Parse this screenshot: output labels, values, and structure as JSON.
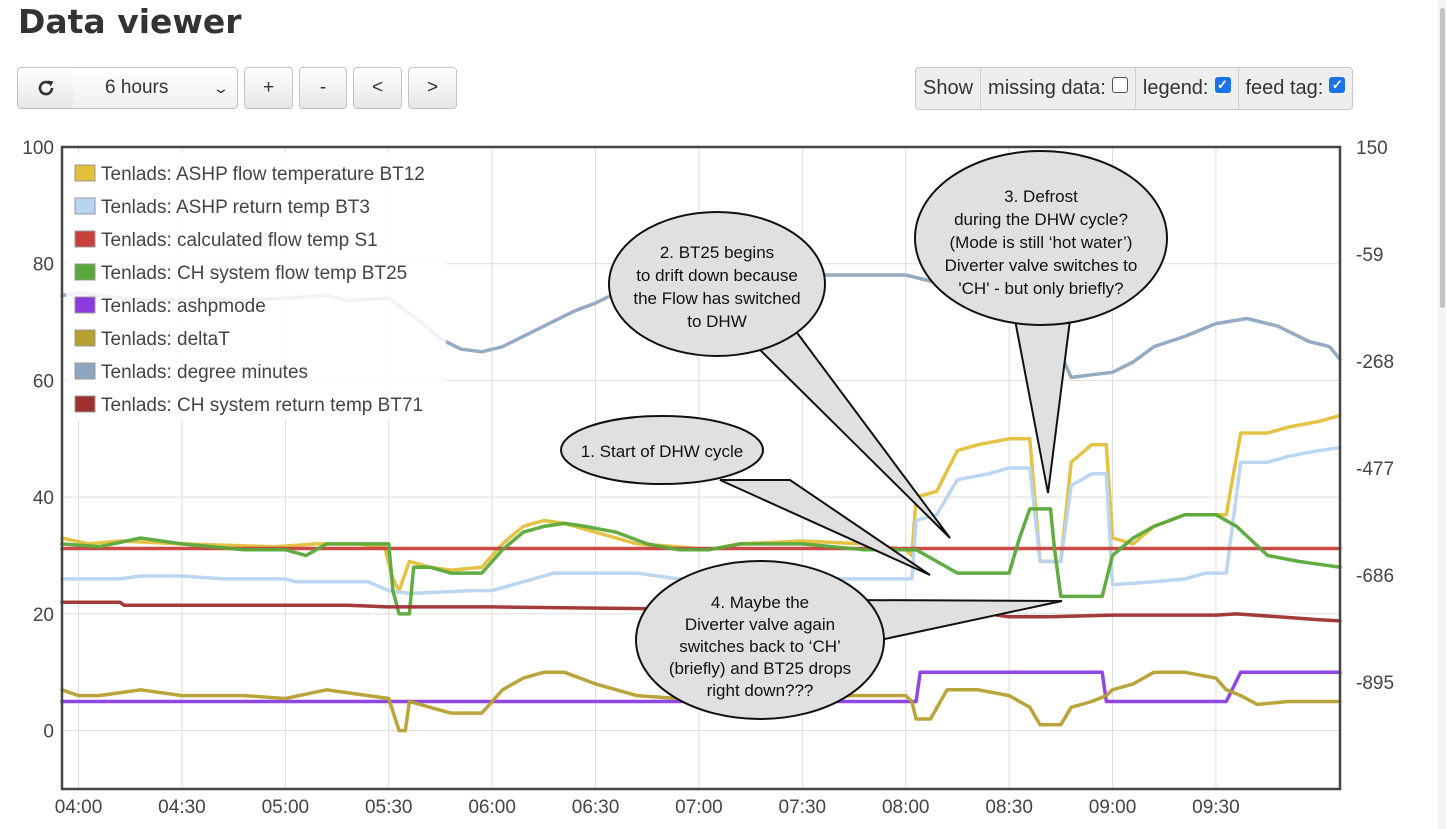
{
  "page": {
    "title": "Data viewer"
  },
  "toolbar": {
    "refresh_icon": "refresh-icon",
    "range_value": "6 hours",
    "zoom_in_label": "+",
    "zoom_out_label": "-",
    "pan_left_label": "<",
    "pan_right_label": ">"
  },
  "options": {
    "show_label": "Show",
    "missing_data_label": "missing data:",
    "missing_data_checked": false,
    "legend_label": "legend:",
    "legend_checked": true,
    "feed_tag_label": "feed tag:",
    "feed_tag_checked": true
  },
  "chart_data": {
    "type": "line",
    "x_ticks": [
      "04:00",
      "04:30",
      "05:00",
      "05:30",
      "06:00",
      "06:30",
      "07:00",
      "07:30",
      "08:00",
      "08:30",
      "09:00",
      "09:30"
    ],
    "y_left": {
      "ticks": [
        100,
        80,
        60,
        40,
        20,
        0
      ],
      "ylim": [
        -10,
        100
      ]
    },
    "y_right": {
      "ticks": [
        150,
        -59,
        -268,
        -477,
        -686,
        -895
      ],
      "ylim": [
        -1104,
        150
      ]
    },
    "grid": true,
    "legend_position": "top-left",
    "series": [
      {
        "name": "Tenlads: ASHP flow temperature BT12",
        "color": "#e3c03a",
        "axis": "left",
        "points": [
          [
            3.92,
            33
          ],
          [
            4.05,
            32
          ],
          [
            4.2,
            32.5
          ],
          [
            4.5,
            32
          ],
          [
            4.95,
            31.5
          ],
          [
            5.15,
            32
          ],
          [
            5.35,
            32
          ],
          [
            5.48,
            31.5
          ],
          [
            5.52,
            26
          ],
          [
            5.55,
            24
          ],
          [
            5.6,
            29
          ],
          [
            5.7,
            28
          ],
          [
            5.8,
            27.5
          ],
          [
            5.95,
            28
          ],
          [
            6.05,
            32
          ],
          [
            6.15,
            35
          ],
          [
            6.25,
            36
          ],
          [
            6.35,
            35.5
          ],
          [
            6.5,
            34
          ],
          [
            6.7,
            32
          ],
          [
            6.9,
            31.5
          ],
          [
            7.05,
            31
          ],
          [
            7.2,
            32
          ],
          [
            7.5,
            32.5
          ],
          [
            7.8,
            32
          ],
          [
            8.0,
            31
          ],
          [
            8.03,
            30
          ],
          [
            8.05,
            40
          ],
          [
            8.15,
            41
          ],
          [
            8.25,
            48
          ],
          [
            8.35,
            49
          ],
          [
            8.5,
            50
          ],
          [
            8.6,
            50
          ],
          [
            8.65,
            29
          ],
          [
            8.75,
            29
          ],
          [
            8.8,
            46
          ],
          [
            8.9,
            49
          ],
          [
            8.97,
            49
          ],
          [
            9.0,
            33
          ],
          [
            9.1,
            32
          ],
          [
            9.2,
            35
          ],
          [
            9.35,
            37
          ],
          [
            9.5,
            37
          ],
          [
            9.55,
            37
          ],
          [
            9.62,
            51
          ],
          [
            9.75,
            51
          ],
          [
            9.85,
            52
          ],
          [
            10.0,
            53
          ],
          [
            10.1,
            54
          ]
        ]
      },
      {
        "name": "Tenlads: ASHP return temp BT3",
        "color": "#b8d4f0",
        "axis": "left",
        "points": [
          [
            3.92,
            26
          ],
          [
            4.2,
            26
          ],
          [
            4.3,
            26.5
          ],
          [
            4.5,
            26.5
          ],
          [
            4.7,
            26
          ],
          [
            5.0,
            26
          ],
          [
            5.05,
            25.5
          ],
          [
            5.4,
            25.5
          ],
          [
            5.5,
            24
          ],
          [
            5.6,
            23.5
          ],
          [
            5.9,
            24
          ],
          [
            6.0,
            24
          ],
          [
            6.1,
            25
          ],
          [
            6.3,
            27
          ],
          [
            6.5,
            27
          ],
          [
            6.7,
            27
          ],
          [
            6.9,
            26
          ],
          [
            7.2,
            26
          ],
          [
            7.5,
            26
          ],
          [
            8.0,
            26
          ],
          [
            8.03,
            26
          ],
          [
            8.05,
            36
          ],
          [
            8.15,
            37
          ],
          [
            8.25,
            43
          ],
          [
            8.4,
            44
          ],
          [
            8.5,
            45
          ],
          [
            8.6,
            45
          ],
          [
            8.65,
            29
          ],
          [
            8.75,
            29
          ],
          [
            8.8,
            42
          ],
          [
            8.9,
            44
          ],
          [
            8.97,
            44
          ],
          [
            9.0,
            25
          ],
          [
            9.2,
            25.5
          ],
          [
            9.35,
            26
          ],
          [
            9.45,
            27
          ],
          [
            9.55,
            27
          ],
          [
            9.62,
            46
          ],
          [
            9.75,
            46
          ],
          [
            9.85,
            47
          ],
          [
            10.0,
            48
          ],
          [
            10.1,
            48.5
          ]
        ]
      },
      {
        "name": "Tenlads: calculated flow temp S1",
        "color": "#c8403c",
        "axis": "left",
        "points": [
          [
            3.92,
            31.2
          ],
          [
            10.1,
            31.2
          ]
        ]
      },
      {
        "name": "Tenlads: CH system flow temp BT25",
        "color": "#5aa83a",
        "axis": "left",
        "points": [
          [
            3.92,
            32
          ],
          [
            4.1,
            31.5
          ],
          [
            4.3,
            33
          ],
          [
            4.5,
            32
          ],
          [
            4.8,
            31
          ],
          [
            5.0,
            31
          ],
          [
            5.1,
            30
          ],
          [
            5.2,
            32
          ],
          [
            5.4,
            32
          ],
          [
            5.5,
            32
          ],
          [
            5.52,
            24
          ],
          [
            5.55,
            20
          ],
          [
            5.6,
            20
          ],
          [
            5.62,
            28
          ],
          [
            5.7,
            28
          ],
          [
            5.8,
            27
          ],
          [
            5.95,
            27
          ],
          [
            6.05,
            31
          ],
          [
            6.15,
            34
          ],
          [
            6.25,
            35
          ],
          [
            6.35,
            35.5
          ],
          [
            6.45,
            35
          ],
          [
            6.6,
            34
          ],
          [
            6.75,
            32
          ],
          [
            6.9,
            31
          ],
          [
            7.05,
            31
          ],
          [
            7.2,
            32
          ],
          [
            7.5,
            32
          ],
          [
            7.8,
            31
          ],
          [
            8.0,
            31
          ],
          [
            8.05,
            31
          ],
          [
            8.15,
            29
          ],
          [
            8.25,
            27
          ],
          [
            8.35,
            27
          ],
          [
            8.5,
            27
          ],
          [
            8.55,
            33
          ],
          [
            8.6,
            38
          ],
          [
            8.7,
            38
          ],
          [
            8.72,
            31
          ],
          [
            8.75,
            23
          ],
          [
            8.85,
            23
          ],
          [
            8.95,
            23
          ],
          [
            9.0,
            30
          ],
          [
            9.1,
            33
          ],
          [
            9.2,
            35
          ],
          [
            9.35,
            37
          ],
          [
            9.5,
            37
          ],
          [
            9.6,
            35
          ],
          [
            9.75,
            30
          ],
          [
            9.9,
            29
          ],
          [
            10.0,
            28.5
          ],
          [
            10.1,
            28
          ]
        ]
      },
      {
        "name": "Tenlads: ashpmode",
        "color": "#8a3ce0",
        "axis": "left",
        "points": [
          [
            3.92,
            5
          ],
          [
            8.05,
            5
          ],
          [
            8.07,
            10
          ],
          [
            8.95,
            10
          ],
          [
            8.97,
            5
          ],
          [
            9.55,
            5
          ],
          [
            9.62,
            10
          ],
          [
            10.1,
            10
          ]
        ]
      },
      {
        "name": "Tenlads: deltaT",
        "color": "#b5a030",
        "axis": "left",
        "points": [
          [
            3.92,
            7
          ],
          [
            4.0,
            6
          ],
          [
            4.1,
            6
          ],
          [
            4.3,
            7
          ],
          [
            4.5,
            6
          ],
          [
            4.8,
            6
          ],
          [
            5.0,
            5.5
          ],
          [
            5.2,
            7
          ],
          [
            5.4,
            6
          ],
          [
            5.5,
            5.5
          ],
          [
            5.55,
            0
          ],
          [
            5.58,
            0
          ],
          [
            5.6,
            5
          ],
          [
            5.7,
            4
          ],
          [
            5.8,
            3
          ],
          [
            5.95,
            3
          ],
          [
            6.05,
            7
          ],
          [
            6.15,
            9
          ],
          [
            6.25,
            10
          ],
          [
            6.35,
            10
          ],
          [
            6.5,
            8
          ],
          [
            6.7,
            6
          ],
          [
            6.9,
            5.5
          ],
          [
            7.1,
            6
          ],
          [
            7.3,
            6.5
          ],
          [
            7.6,
            6
          ],
          [
            7.9,
            6
          ],
          [
            8.0,
            6
          ],
          [
            8.03,
            5
          ],
          [
            8.05,
            2
          ],
          [
            8.12,
            2
          ],
          [
            8.2,
            7
          ],
          [
            8.35,
            7
          ],
          [
            8.5,
            6
          ],
          [
            8.6,
            4
          ],
          [
            8.65,
            1
          ],
          [
            8.75,
            1
          ],
          [
            8.8,
            4
          ],
          [
            8.9,
            5
          ],
          [
            8.97,
            6
          ],
          [
            9.0,
            7
          ],
          [
            9.1,
            8
          ],
          [
            9.2,
            10
          ],
          [
            9.35,
            10
          ],
          [
            9.5,
            9
          ],
          [
            9.55,
            7
          ],
          [
            9.62,
            6
          ],
          [
            9.7,
            4.5
          ],
          [
            9.85,
            5
          ],
          [
            10.0,
            5
          ],
          [
            10.1,
            5
          ]
        ]
      },
      {
        "name": "Tenlads: degree minutes",
        "color": "#8fa6c0",
        "axis": "right",
        "points": [
          [
            3.92,
            -140
          ],
          [
            4.0,
            -135
          ],
          [
            4.2,
            -145
          ],
          [
            4.4,
            -150
          ],
          [
            4.6,
            -145
          ],
          [
            4.8,
            -150
          ],
          [
            5.0,
            -145
          ],
          [
            5.2,
            -140
          ],
          [
            5.3,
            -150
          ],
          [
            5.5,
            -145
          ],
          [
            5.65,
            -190
          ],
          [
            5.75,
            -225
          ],
          [
            5.85,
            -245
          ],
          [
            5.95,
            -250
          ],
          [
            6.05,
            -240
          ],
          [
            6.2,
            -210
          ],
          [
            6.4,
            -170
          ],
          [
            6.5,
            -155
          ],
          [
            6.6,
            -135
          ],
          [
            6.8,
            -120
          ],
          [
            7.0,
            -110
          ],
          [
            7.3,
            -100
          ],
          [
            7.6,
            -100
          ],
          [
            7.9,
            -100
          ],
          [
            8.0,
            -100
          ],
          [
            8.1,
            -110
          ],
          [
            8.3,
            -130
          ],
          [
            8.5,
            -150
          ],
          [
            8.6,
            -170
          ],
          [
            8.7,
            -210
          ],
          [
            8.8,
            -300
          ],
          [
            8.9,
            -295
          ],
          [
            9.0,
            -290
          ],
          [
            9.1,
            -270
          ],
          [
            9.2,
            -240
          ],
          [
            9.35,
            -220
          ],
          [
            9.5,
            -195
          ],
          [
            9.65,
            -185
          ],
          [
            9.8,
            -200
          ],
          [
            9.95,
            -230
          ],
          [
            10.05,
            -240
          ],
          [
            10.1,
            -265
          ]
        ]
      },
      {
        "name": "Tenlads: CH system return temp BT71",
        "color": "#9e3030",
        "axis": "left",
        "points": [
          [
            3.92,
            22
          ],
          [
            4.2,
            22
          ],
          [
            4.22,
            21.5
          ],
          [
            4.5,
            21.5
          ],
          [
            5.0,
            21.5
          ],
          [
            5.3,
            21.5
          ],
          [
            5.5,
            21.2
          ],
          [
            6.0,
            21.2
          ],
          [
            6.5,
            21
          ],
          [
            7.0,
            20.8
          ],
          [
            7.5,
            20.5
          ],
          [
            8.0,
            20.5
          ],
          [
            8.4,
            20
          ],
          [
            8.5,
            19.5
          ],
          [
            8.7,
            19.5
          ],
          [
            9.0,
            19.8
          ],
          [
            9.5,
            19.8
          ],
          [
            9.6,
            20
          ],
          [
            9.8,
            19.5
          ],
          [
            10.0,
            19
          ],
          [
            10.1,
            18.8
          ]
        ]
      }
    ],
    "annotations": [
      {
        "text_lines": [
          "1. Start of DHW cycle"
        ]
      },
      {
        "text_lines": [
          "2. BT25 begins",
          "to drift down because",
          "the Flow has switched",
          "to DHW"
        ]
      },
      {
        "text_lines": [
          "3. Defrost",
          "during the DHW cycle?",
          "(Mode is still ‘hot water’)",
          "Diverter valve switches to",
          "'CH' - but only briefly?"
        ]
      },
      {
        "text_lines": [
          "4. Maybe the",
          "Diverter valve again",
          "switches back to ‘CH’",
          "(briefly) and BT25 drops",
          "right down???"
        ]
      }
    ]
  }
}
